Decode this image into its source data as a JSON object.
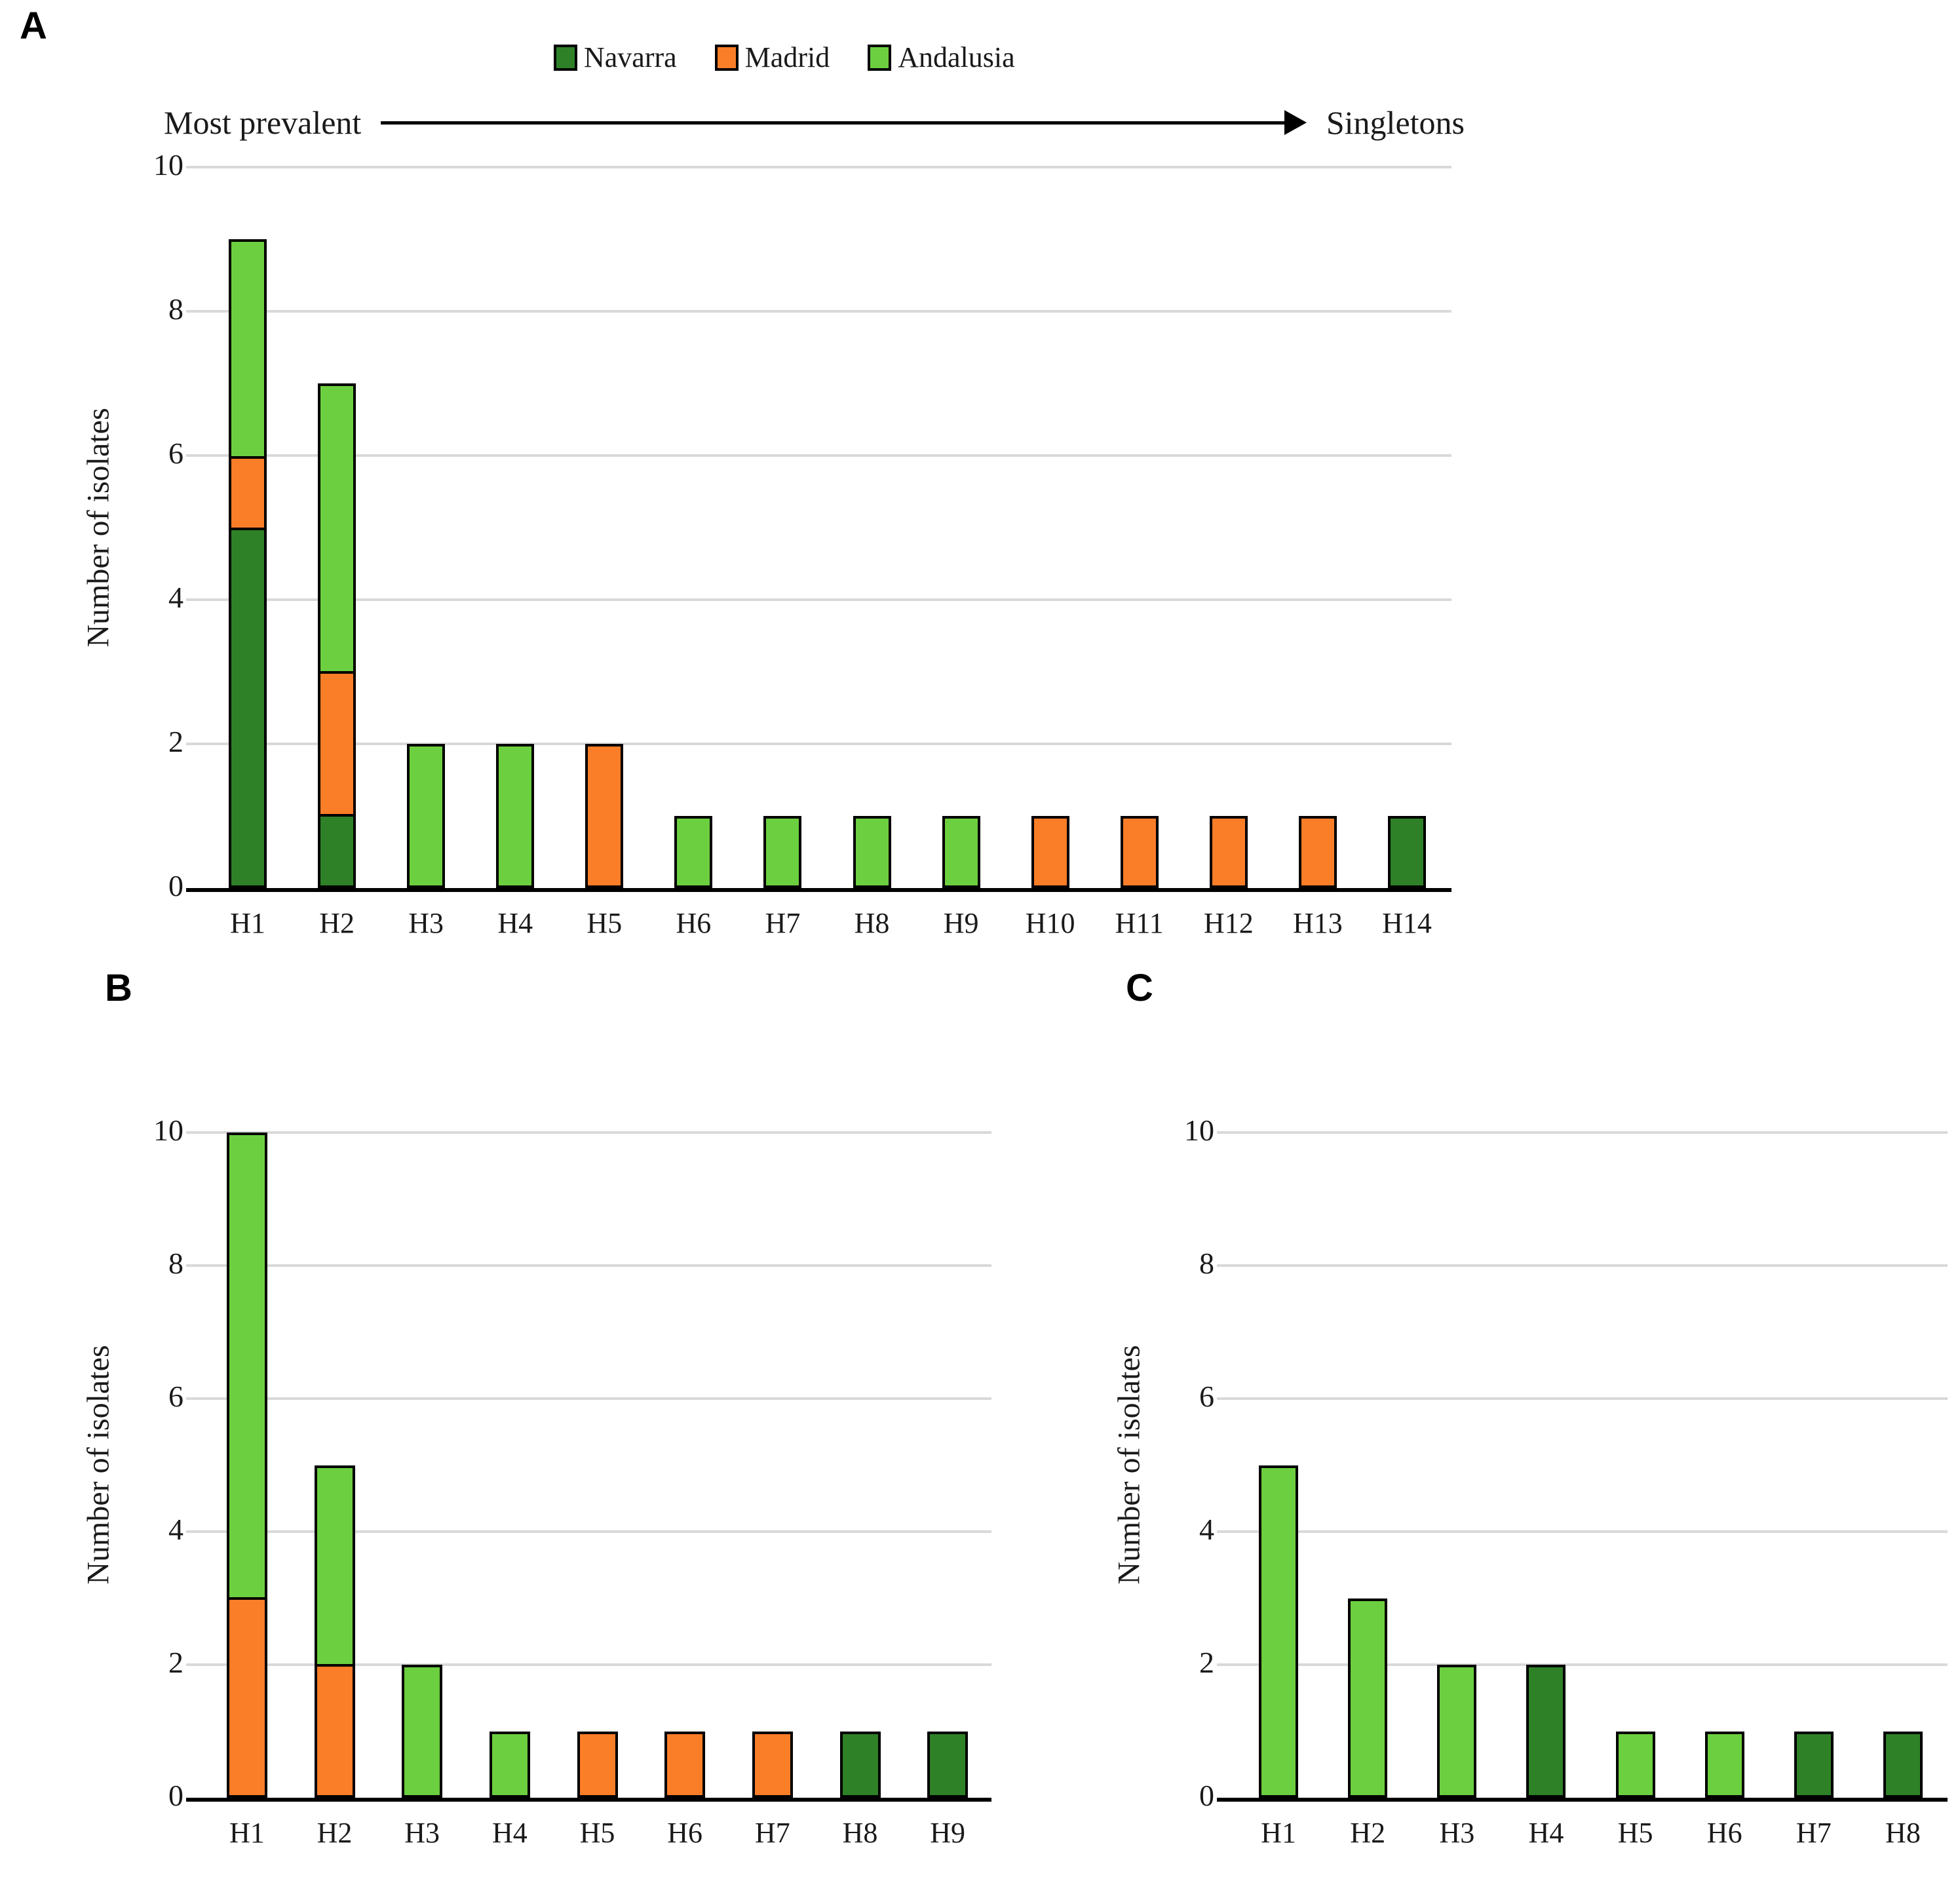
{
  "figure": {
    "background": "#ffffff"
  },
  "colors": {
    "gridline": "#d9d9d9",
    "axis": "#000000",
    "bar_border": "#000000"
  },
  "legend": [
    {
      "label": "Navarra",
      "color": "#2e8127"
    },
    {
      "label": "Madrid",
      "color": "#fa7d28"
    },
    {
      "label": "Andalusia",
      "color": "#6ccf3f"
    }
  ],
  "annotation": {
    "left": "Most prevalent",
    "right": "Singletons"
  },
  "chart_data": [
    {
      "type": "bar",
      "panel_label": "A",
      "ylabel": "Number of isolates",
      "xlabel": "",
      "ylim": [
        0,
        10
      ],
      "yticks": [
        0,
        2,
        4,
        6,
        8,
        10
      ],
      "grid": true,
      "legend_position": "top",
      "stacked": true,
      "categories": [
        "H1",
        "H2",
        "H3",
        "H4",
        "H5",
        "H6",
        "H7",
        "H8",
        "H9",
        "H10",
        "H11",
        "H12",
        "H13",
        "H14"
      ],
      "series": [
        {
          "name": "Navarra",
          "values": [
            5,
            1,
            0,
            0,
            0,
            0,
            0,
            0,
            0,
            0,
            0,
            0,
            0,
            1
          ]
        },
        {
          "name": "Madrid",
          "values": [
            1,
            2,
            0,
            0,
            2,
            0,
            0,
            0,
            0,
            1,
            1,
            1,
            1,
            0
          ]
        },
        {
          "name": "Andalusia",
          "values": [
            3,
            4,
            2,
            2,
            0,
            1,
            1,
            1,
            1,
            0,
            0,
            0,
            0,
            0
          ]
        }
      ],
      "totals": [
        9,
        7,
        2,
        2,
        2,
        1,
        1,
        1,
        1,
        1,
        1,
        1,
        1,
        1
      ]
    },
    {
      "type": "bar",
      "panel_label": "B",
      "ylabel": "Number of isolates",
      "xlabel": "",
      "ylim": [
        0,
        10
      ],
      "yticks": [
        0,
        2,
        4,
        6,
        8,
        10
      ],
      "grid": true,
      "stacked": true,
      "categories": [
        "H1",
        "H2",
        "H3",
        "H4",
        "H5",
        "H6",
        "H7",
        "H8",
        "H9"
      ],
      "series": [
        {
          "name": "Navarra",
          "values": [
            0,
            0,
            0,
            0,
            0,
            0,
            0,
            1,
            1
          ]
        },
        {
          "name": "Madrid",
          "values": [
            3,
            2,
            0,
            0,
            1,
            1,
            1,
            0,
            0
          ]
        },
        {
          "name": "Andalusia",
          "values": [
            7,
            3,
            2,
            1,
            0,
            0,
            0,
            0,
            0
          ]
        }
      ],
      "totals": [
        10,
        5,
        2,
        1,
        1,
        1,
        1,
        1,
        1
      ]
    },
    {
      "type": "bar",
      "panel_label": "C",
      "ylabel": "Number of isolates",
      "xlabel": "",
      "ylim": [
        0,
        10
      ],
      "yticks": [
        0,
        2,
        4,
        6,
        8,
        10
      ],
      "grid": true,
      "stacked": true,
      "categories": [
        "H1",
        "H2",
        "H3",
        "H4",
        "H5",
        "H6",
        "H7",
        "H8"
      ],
      "series": [
        {
          "name": "Navarra",
          "values": [
            0,
            0,
            0,
            2,
            0,
            0,
            1,
            1
          ]
        },
        {
          "name": "Madrid",
          "values": [
            0,
            0,
            0,
            0,
            0,
            0,
            0,
            0
          ]
        },
        {
          "name": "Andalusia",
          "values": [
            5,
            3,
            2,
            0,
            1,
            1,
            0,
            0
          ]
        }
      ],
      "totals": [
        5,
        3,
        2,
        2,
        1,
        1,
        1,
        1
      ]
    }
  ]
}
